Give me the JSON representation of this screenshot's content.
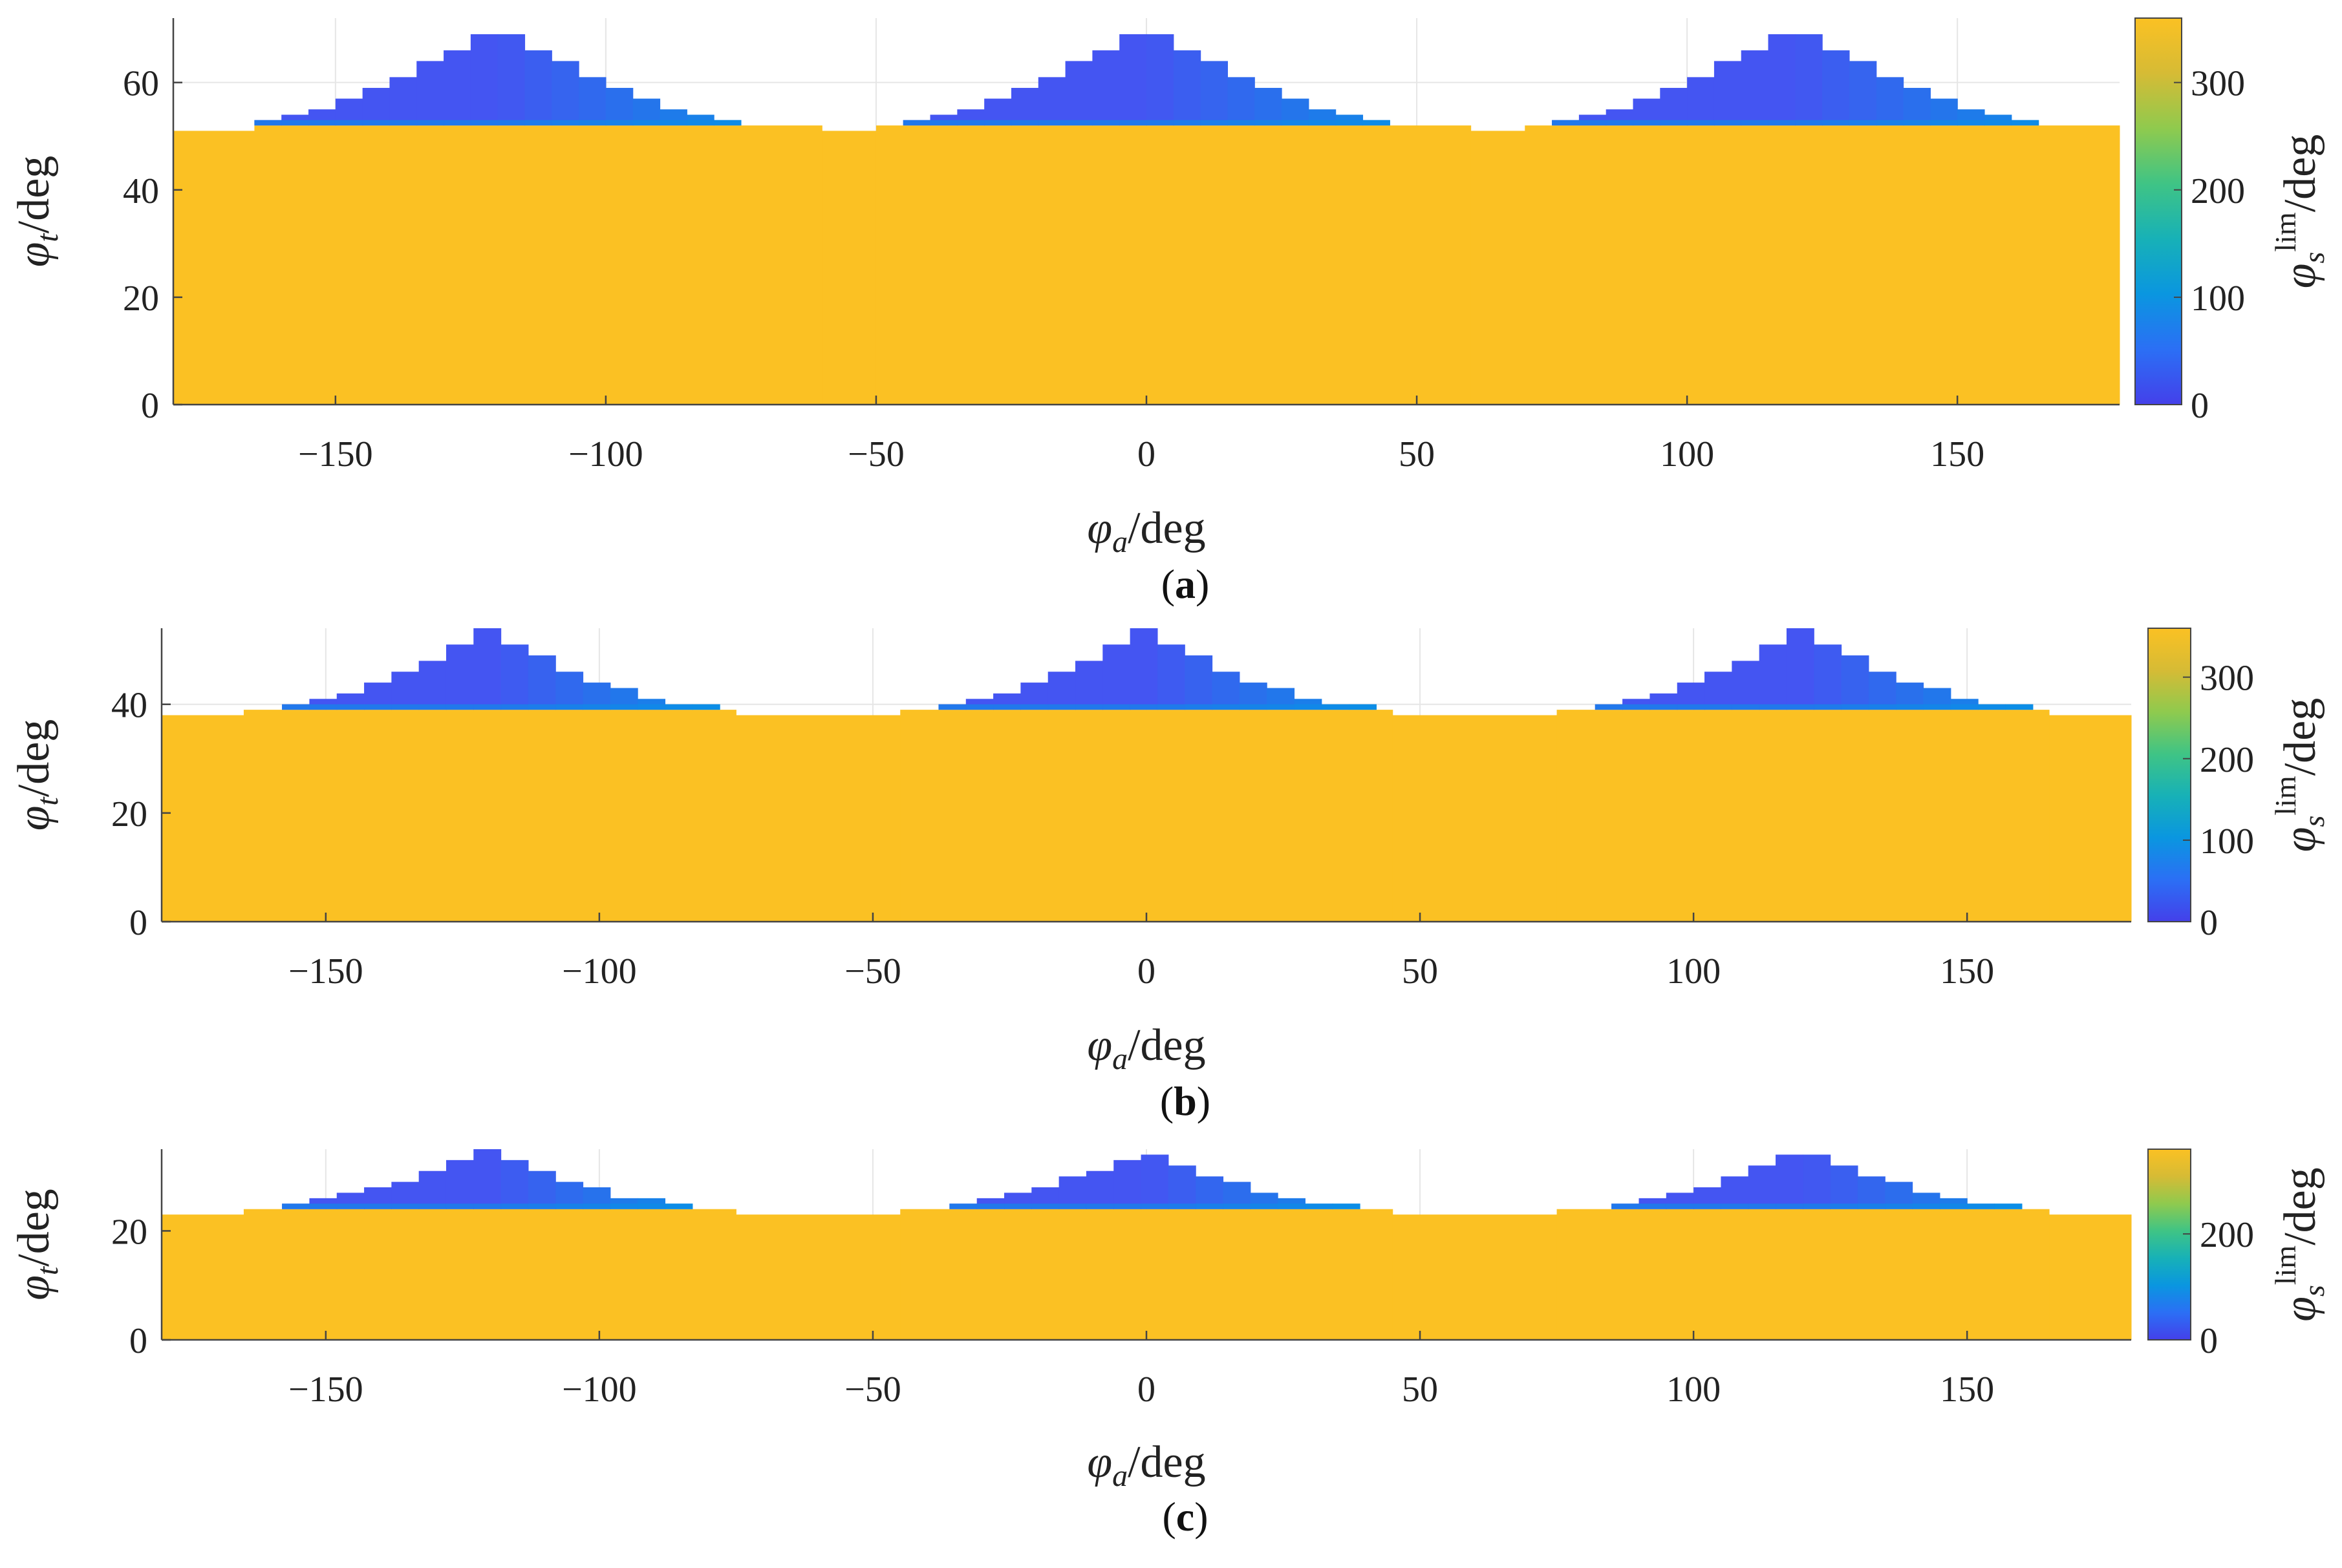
{
  "chart_data": [
    {
      "type": "heatmap",
      "panel_label": "a",
      "xlabel": "φa/deg",
      "ylabel": "φt/deg",
      "colorbar_label": "φs lim/deg",
      "xlim": [
        -180,
        180
      ],
      "ylim": [
        0,
        72
      ],
      "xticks": [
        -150,
        -100,
        -50,
        0,
        50,
        100,
        150
      ],
      "yticks": [
        0,
        20,
        40,
        60
      ],
      "colorbar_ticks": [
        0,
        100,
        200,
        300
      ],
      "colorbar_range": [
        0,
        360
      ],
      "grid": true,
      "fill_value": 360,
      "base_height": [
        {
          "x0": -180,
          "x1": -165,
          "y": 51
        },
        {
          "x0": -165,
          "x1": -60,
          "y": 52
        },
        {
          "x0": -60,
          "x1": -50,
          "y": 51
        },
        {
          "x0": -50,
          "x1": 60,
          "y": 52
        },
        {
          "x0": 60,
          "x1": 70,
          "y": 51
        },
        {
          "x0": 70,
          "x1": 180,
          "y": 52
        }
      ],
      "peaks": [
        {
          "center": -120,
          "height": 71,
          "left_edge": -165,
          "right_edge": -75,
          "edge_height": 53
        },
        {
          "center": 0,
          "height": 71,
          "left_edge": -45,
          "right_edge": 45,
          "edge_height": 53
        },
        {
          "center": 120,
          "height": 71,
          "left_edge": 75,
          "right_edge": 165,
          "edge_height": 53
        }
      ],
      "peak_value_range": [
        0,
        100
      ]
    },
    {
      "type": "heatmap",
      "panel_label": "b",
      "xlabel": "φa/deg",
      "ylabel": "φt/deg",
      "colorbar_label": "φs lim/deg",
      "xlim": [
        -180,
        180
      ],
      "ylim": [
        0,
        54
      ],
      "xticks": [
        -150,
        -100,
        -50,
        0,
        50,
        100,
        150
      ],
      "yticks": [
        0,
        20,
        40
      ],
      "colorbar_ticks": [
        0,
        100,
        200,
        300
      ],
      "colorbar_range": [
        0,
        360
      ],
      "grid": true,
      "fill_value": 360,
      "base_height": [
        {
          "x0": -180,
          "x1": -165,
          "y": 38
        },
        {
          "x0": -165,
          "x1": -75,
          "y": 39
        },
        {
          "x0": -75,
          "x1": -45,
          "y": 38
        },
        {
          "x0": -45,
          "x1": 45,
          "y": 39
        },
        {
          "x0": 45,
          "x1": 75,
          "y": 38
        },
        {
          "x0": 75,
          "x1": 165,
          "y": 39
        },
        {
          "x0": 165,
          "x1": 180,
          "y": 38
        }
      ],
      "peaks": [
        {
          "center": -120,
          "height": 54,
          "left_edge": -158,
          "right_edge": -82,
          "edge_height": 40
        },
        {
          "center": 0,
          "height": 54,
          "left_edge": -38,
          "right_edge": 38,
          "edge_height": 40
        },
        {
          "center": 120,
          "height": 54,
          "left_edge": 82,
          "right_edge": 158,
          "edge_height": 40
        }
      ],
      "peak_value_range": [
        0,
        100
      ]
    },
    {
      "type": "heatmap",
      "panel_label": "c",
      "xlabel": "φa/deg",
      "ylabel": "φt/deg",
      "colorbar_label": "φs lim/deg",
      "xlim": [
        -180,
        180
      ],
      "ylim": [
        0,
        35
      ],
      "xticks": [
        -150,
        -100,
        -50,
        0,
        50,
        100,
        150
      ],
      "yticks": [
        0,
        20
      ],
      "colorbar_ticks": [
        0,
        200
      ],
      "colorbar_range": [
        0,
        360
      ],
      "grid": true,
      "fill_value": 360,
      "base_height": [
        {
          "x0": -180,
          "x1": -165,
          "y": 23
        },
        {
          "x0": -165,
          "x1": -75,
          "y": 24
        },
        {
          "x0": -75,
          "x1": -45,
          "y": 23
        },
        {
          "x0": -45,
          "x1": 45,
          "y": 24
        },
        {
          "x0": 45,
          "x1": 75,
          "y": 23
        },
        {
          "x0": 75,
          "x1": 165,
          "y": 24
        },
        {
          "x0": 165,
          "x1": 180,
          "y": 23
        }
      ],
      "peaks": [
        {
          "center": -120,
          "height": 35,
          "left_edge": -158,
          "right_edge": -85,
          "edge_height": 25
        },
        {
          "center": 0,
          "height": 35,
          "left_edge": -36,
          "right_edge": 36,
          "edge_height": 25
        },
        {
          "center": 120,
          "height": 35,
          "left_edge": 85,
          "right_edge": 158,
          "edge_height": 25
        }
      ],
      "peak_value_range": [
        0,
        100
      ]
    }
  ],
  "colors": {
    "fill": "#fbc123",
    "peak_low": "#4455f2",
    "peak_high": "#0a8fe6",
    "axis": "#444444",
    "grid": "#e6e6e6",
    "colormap": [
      "#4440ea",
      "#2b6ff5",
      "#0a96e0",
      "#17b1b7",
      "#3fc485",
      "#8fca4e",
      "#d6bb35",
      "#fbc123"
    ]
  }
}
